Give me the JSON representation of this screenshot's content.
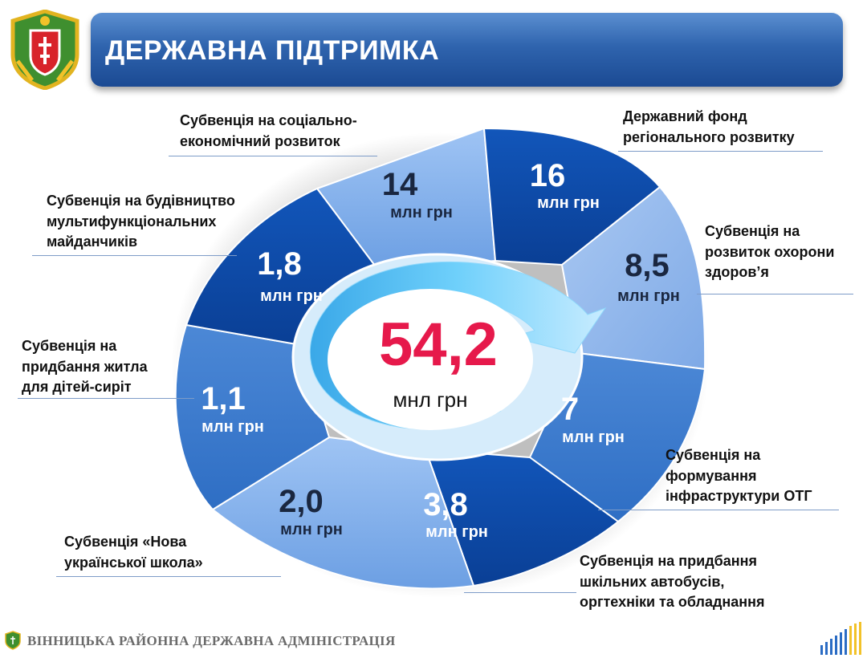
{
  "header": {
    "title": "ДЕРЖАВНА ПІДТРИМКА"
  },
  "center": {
    "total_value": "54,2",
    "total_unit": "мнл грн"
  },
  "colors": {
    "center_value": "#e6194b",
    "title_banner": "#2f64ae",
    "dark_segment": "#0e4fae",
    "light_segment": "#8fb8ef"
  },
  "segments": [
    {
      "value": "14",
      "unit": "млн грн",
      "label": [
        "Субвенція на соціально-",
        "економічний розвиток"
      ]
    },
    {
      "value": "16",
      "unit": "млн грн",
      "label": [
        "Державний фонд",
        "регіонального розвитку"
      ]
    },
    {
      "value": "8,5",
      "unit": "млн грн",
      "label": [
        "Субвенція на",
        "розвиток охорони",
        "здоров’я"
      ]
    },
    {
      "value": "7",
      "unit": "млн грн",
      "label": [
        "Субвенція на",
        "формування",
        "інфраструктури ОТГ"
      ]
    },
    {
      "value": "3,8",
      "unit": "млн грн",
      "label": [
        "Субвенція на придбання",
        "шкільних автобусів,",
        "оргтехніки та обладнання"
      ]
    },
    {
      "value": "2,0",
      "unit": "млн грн",
      "label": [
        "Субвенція «Нова",
        "української школа»"
      ]
    },
    {
      "value": "1,1",
      "unit": "млн грн",
      "label": [
        "Субвенція на",
        "придбання житла",
        "для дітей-сиріт"
      ]
    },
    {
      "value": "1,8",
      "unit": "млн грн",
      "label": [
        "Субвенція на будівництво",
        "мультифункціональних",
        "майданчиків"
      ]
    }
  ],
  "footer": {
    "text": "ВІННИЦЬКА РАЙОННА ДЕРЖАВНА АДМІНІСТРАЦІЯ"
  }
}
